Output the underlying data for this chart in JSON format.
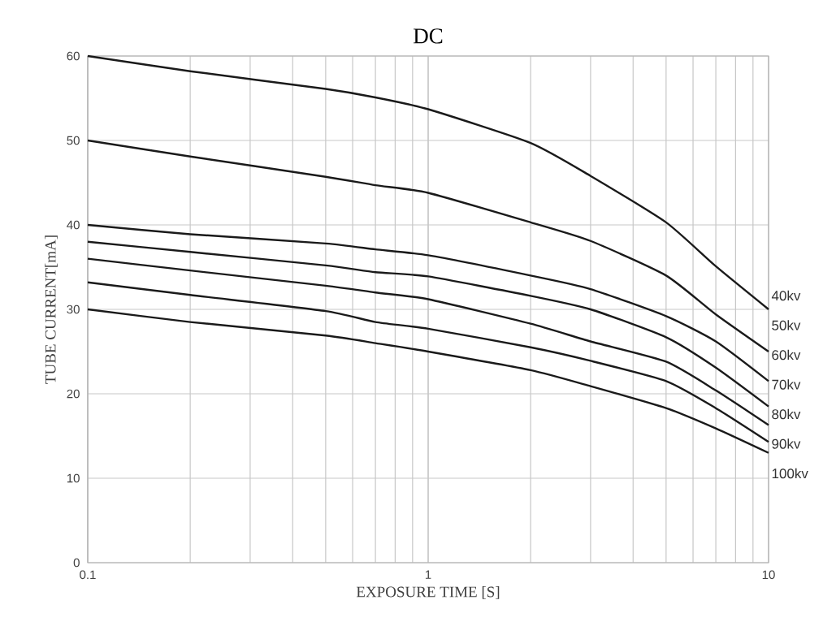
{
  "chart_data": {
    "type": "line",
    "title": "DC",
    "xlabel": "EXPOSURE TIME [S]",
    "ylabel": "TUBE CURRENT[mA]",
    "x": [
      0.1,
      0.2,
      0.5,
      0.7,
      1,
      2,
      3,
      5,
      7,
      10
    ],
    "series": [
      {
        "name": "40kv",
        "color": "#1a1a1a",
        "values": [
          60,
          58.2,
          56.1,
          55.1,
          53.7,
          49.7,
          45.8,
          40.3,
          35.1,
          30
        ]
      },
      {
        "name": "50kv",
        "color": "#1a1a1a",
        "values": [
          50,
          48.1,
          45.7,
          44.7,
          43.8,
          40.3,
          38.1,
          34.0,
          29.4,
          25.0
        ]
      },
      {
        "name": "60kv",
        "color": "#1a1a1a",
        "values": [
          40,
          38.9,
          37.8,
          37.1,
          36.4,
          34.0,
          32.4,
          29.2,
          26.2,
          21.5
        ]
      },
      {
        "name": "70kv",
        "color": "#1a1a1a",
        "values": [
          38,
          36.8,
          35.2,
          34.4,
          33.9,
          31.6,
          30.0,
          26.7,
          23.1,
          18.5
        ]
      },
      {
        "name": "80kv",
        "color": "#1a1a1a",
        "values": [
          36,
          34.6,
          32.8,
          32.0,
          31.2,
          28.3,
          26.2,
          23.8,
          20.4,
          16.3
        ]
      },
      {
        "name": "90kv",
        "color": "#1a1a1a",
        "values": [
          33.2,
          31.7,
          29.8,
          28.5,
          27.7,
          25.5,
          23.9,
          21.5,
          18.3,
          14.3
        ]
      },
      {
        "name": "100kv",
        "color": "#1a1a1a",
        "values": [
          30,
          28.5,
          26.9,
          26.0,
          25.0,
          22.8,
          20.9,
          18.3,
          15.9,
          13.0
        ]
      }
    ],
    "xlim": [
      0.1,
      10
    ],
    "xticks": [
      0.1,
      1,
      10
    ],
    "ylim": [
      0,
      60
    ],
    "yticks": [
      0,
      10,
      20,
      30,
      40,
      50,
      60
    ],
    "log": "x",
    "grid": true,
    "marker": "none",
    "line_style": "solid"
  }
}
